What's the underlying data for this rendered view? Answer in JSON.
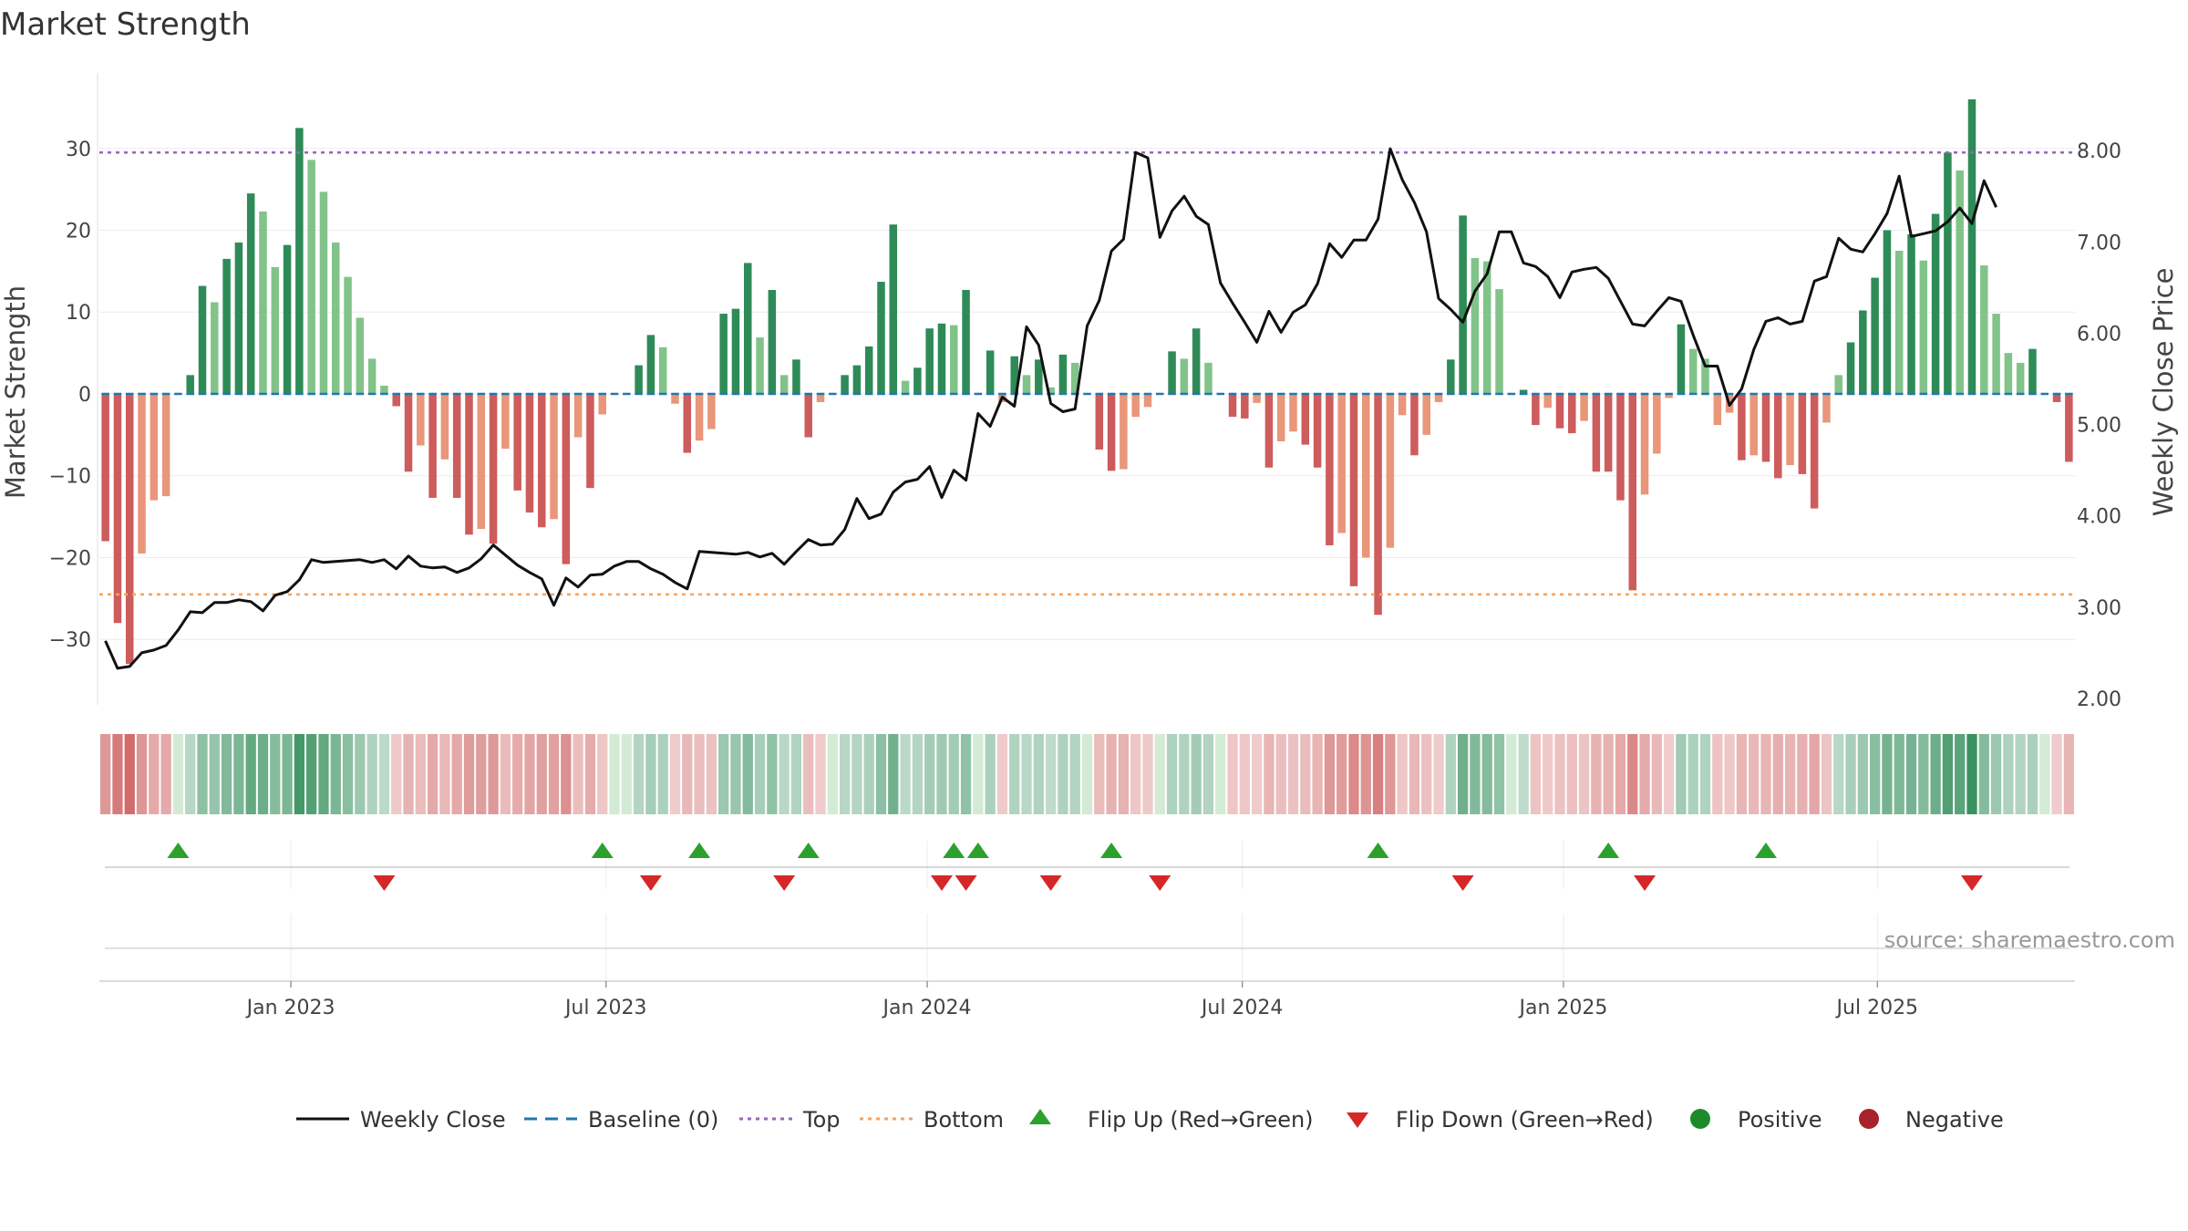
{
  "chart_data": {
    "type": "bar",
    "title": "Market Strength",
    "ylabel": "Market Strength",
    "y2label": "Weekly Close Price",
    "ylim": [
      -38,
      39
    ],
    "y2lim": [
      1.93,
      8.83
    ],
    "yticks": [
      -30,
      -20,
      -10,
      0,
      10,
      20,
      30
    ],
    "ytick_labels": [
      "−30",
      "−20",
      "−10",
      "0",
      "10",
      "20",
      "30"
    ],
    "y2ticks": [
      2,
      3,
      4,
      5,
      6,
      7,
      8
    ],
    "y2tick_labels": [
      "2.00",
      "3.00",
      "4.00",
      "5.00",
      "6.00",
      "7.00",
      "8.00"
    ],
    "top_level": 29.5,
    "bottom_level": -24.5,
    "x_ticks": [
      {
        "label": "Jan 2023",
        "week": 15.3
      },
      {
        "label": "Jul 2023",
        "week": 41.3
      },
      {
        "label": "Jan 2024",
        "week": 67.8
      },
      {
        "label": "Jul 2024",
        "week": 93.8
      },
      {
        "label": "Jan 2025",
        "week": 120.3
      },
      {
        "label": "Jul 2025",
        "week": 146.2
      }
    ],
    "series": [
      {
        "name": "Market Strength",
        "kind": "bar",
        "values": [
          -18,
          -28,
          -33,
          -19.5,
          -13,
          -12.5,
          0,
          2.3,
          13.2,
          11.2,
          16.5,
          18.5,
          24.5,
          22.3,
          15.5,
          18.2,
          32.5,
          28.6,
          24.7,
          18.5,
          14.3,
          9.3,
          4.3,
          1,
          -1.5,
          -9.5,
          -6.3,
          -12.7,
          -8,
          -12.7,
          -17.2,
          -16.5,
          -18.3,
          -6.7,
          -11.8,
          -14.5,
          -16.3,
          -15.3,
          -20.8,
          -5.3,
          -11.5,
          -2.5,
          0,
          0,
          3.5,
          7.2,
          5.7,
          -1.2,
          -7.2,
          -5.7,
          -4.3,
          9.8,
          10.4,
          16,
          6.9,
          12.7,
          2.3,
          4.2,
          -5.3,
          -1,
          0,
          2.3,
          3.5,
          5.8,
          13.7,
          20.7,
          1.6,
          3.2,
          8,
          8.6,
          8.4,
          12.7,
          0,
          5.3,
          -1,
          4.6,
          2.3,
          4.2,
          0.8,
          4.8,
          3.8,
          0,
          -6.8,
          -9.4,
          -9.2,
          -2.8,
          -1.6,
          0,
          5.2,
          4.3,
          8,
          3.8,
          0,
          -2.8,
          -3,
          -1.1,
          -9,
          -5.8,
          -4.6,
          -6.2,
          -9,
          -18.5,
          -17,
          -23.5,
          -20,
          -27,
          -18.8,
          -2.6,
          -7.5,
          -5,
          -1,
          4.2,
          21.8,
          16.6,
          16.2,
          12.8,
          0,
          0.5,
          -3.8,
          -1.7,
          -4.2,
          -4.8,
          -3.3,
          -9.5,
          -9.5,
          -13,
          -24,
          -12.3,
          -7.3,
          -0.5,
          8.5,
          5.5,
          4.3,
          -3.8,
          -2.3,
          -8.1,
          -7.5,
          -8.3,
          -10.3,
          -8.7,
          -9.8,
          -14,
          -3.5,
          2.3,
          6.3,
          10.2,
          14.2,
          20,
          17.5,
          19.5,
          16.3,
          22,
          29.5,
          27.3,
          36,
          15.7,
          9.8,
          5,
          3.8,
          5.5,
          0,
          -1,
          -8.3
        ]
      },
      {
        "name": "Weekly Close",
        "kind": "line",
        "axis": "right",
        "values": [
          2.63,
          2.33,
          2.35,
          2.5,
          2.53,
          2.58,
          2.75,
          2.95,
          2.94,
          3.05,
          3.05,
          3.08,
          3.06,
          2.96,
          3.13,
          3.17,
          3.3,
          3.52,
          3.49,
          3.5,
          3.51,
          3.52,
          3.49,
          3.52,
          3.42,
          3.56,
          3.45,
          3.43,
          3.44,
          3.38,
          3.43,
          3.53,
          3.68,
          3.57,
          3.46,
          3.38,
          3.31,
          3.02,
          3.32,
          3.22,
          3.35,
          3.36,
          3.45,
          3.5,
          3.5,
          3.42,
          3.36,
          3.27,
          3.2,
          3.61,
          3.6,
          3.59,
          3.58,
          3.6,
          3.55,
          3.59,
          3.47,
          3.61,
          3.74,
          3.68,
          3.69,
          3.85,
          4.19,
          3.97,
          4.02,
          4.26,
          4.37,
          4.4,
          4.54,
          4.2,
          4.5,
          4.39,
          5.12,
          4.98,
          5.3,
          5.2,
          6.07,
          5.87,
          5.23,
          5.14,
          5.17,
          6.08,
          6.36,
          6.9,
          7.03,
          7.98,
          7.92,
          7.05,
          7.34,
          7.5,
          7.28,
          7.19,
          6.55,
          6.33,
          6.12,
          5.9,
          6.24,
          6.01,
          6.23,
          6.31,
          6.54,
          6.98,
          6.83,
          7.02,
          7.02,
          7.25,
          8.02,
          7.68,
          7.43,
          7.11,
          6.38,
          6.26,
          6.12,
          6.46,
          6.65,
          7.11,
          7.11,
          6.77,
          6.73,
          6.62,
          6.39,
          6.67,
          6.7,
          6.72,
          6.6,
          6.35,
          6.1,
          6.08,
          6.24,
          6.39,
          6.35,
          5.98,
          5.64,
          5.64,
          5.21,
          5.39,
          5.82,
          6.13,
          6.17,
          6.1,
          6.13,
          6.57,
          6.62,
          7.04,
          6.92,
          6.89,
          7.09,
          7.31,
          7.72,
          7.06,
          7.09,
          7.12,
          7.22,
          7.37,
          7.2,
          7.67,
          7.38
        ]
      }
    ],
    "flip_up_weeks": [
      6,
      41,
      49,
      58,
      70,
      72,
      83,
      105,
      124,
      137
    ],
    "flip_down_weeks": [
      23,
      45,
      56,
      69,
      71,
      78,
      87,
      112,
      127,
      154
    ],
    "legend": {
      "placement": "bottom-center",
      "entries": [
        "Weekly Close",
        "Baseline (0)",
        "Top",
        "Bottom",
        "Flip Up (Red→Green)",
        "Flip Down (Green→Red)",
        "Positive",
        "Negative"
      ]
    },
    "annotations": [
      "source: sharemaestro.com"
    ]
  },
  "colors": {
    "pos_dark": "#2e8b57",
    "pos_light": "#82c38a",
    "neg_dark": "#cd5c5c",
    "neg_light": "#e9967a",
    "line": "#111111",
    "top": "#9467bd",
    "bottom": "#f4a261",
    "baseline": "#1f77b4",
    "flip_up": "#2ca02c",
    "flip_down": "#d62728",
    "positive_dot": "#1e8b2a",
    "negative_dot": "#a8232b",
    "grid": "#ececec"
  }
}
